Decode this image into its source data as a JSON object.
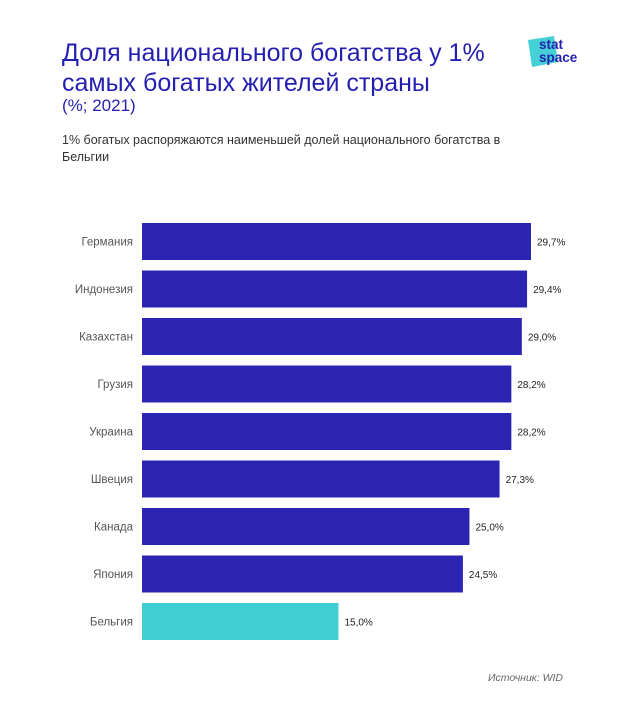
{
  "header": {
    "title": "Доля национального богатства у 1% самых богатых жителей страны",
    "unit": "(%; 2021)",
    "subtitle": "1% богатых распоряжаются наименьшей долей национального богатства в Бельгии"
  },
  "logo": {
    "line1": "stat",
    "line2": "space"
  },
  "footer": {
    "source": "Источник: WID"
  },
  "colors": {
    "bar": "#2b24b3",
    "highlight": "#40ced3",
    "title": "#241fb0",
    "logo_bg": "#45d0d6"
  },
  "chart_data": {
    "type": "bar",
    "orientation": "horizontal",
    "title": "Доля национального богатства у 1% самых богатых жителей страны",
    "categories": [
      "Германия",
      "Индонезия",
      "Казахстан",
      "Грузия",
      "Украина",
      "Швеция",
      "Канада",
      "Япония",
      "Бельгия"
    ],
    "values": [
      29.7,
      29.4,
      29.0,
      28.2,
      28.2,
      27.3,
      25.0,
      24.5,
      15.0
    ],
    "value_labels": [
      "29,7%",
      "29,4%",
      "29,0%",
      "28,2%",
      "28,2%",
      "27,3%",
      "25,0%",
      "24,5%",
      "15,0%"
    ],
    "highlighted": [
      "Бельгия"
    ],
    "xlim": [
      0,
      29.7
    ],
    "grid": false,
    "xlabel": "",
    "ylabel": ""
  }
}
